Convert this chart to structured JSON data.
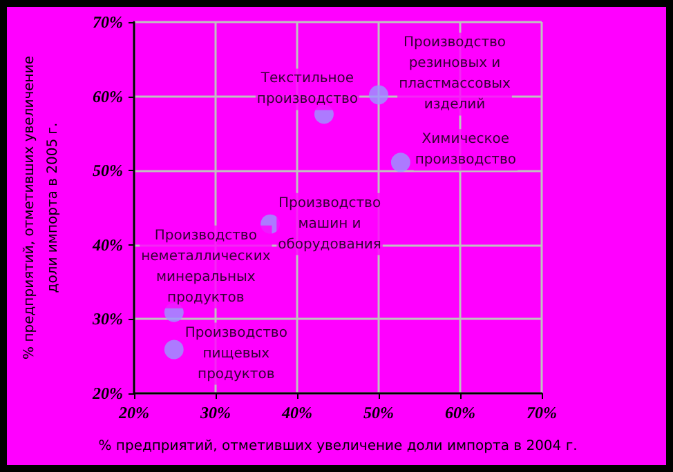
{
  "chart_data": {
    "type": "scatter",
    "xlabel": "% предприятий, отметивших увеличение доли импорта в 2004 г.",
    "ylabel": "% предприятий, отметивших увеличение\nдоли импорта в 2005 г.",
    "x": [
      43.3,
      50.0,
      52.7,
      36.7,
      24.9,
      24.9
    ],
    "series": [
      {
        "color": "#9999ff",
        "values": [
          57.6,
          60.2,
          51.1,
          42.8,
          30.9,
          25.9
        ]
      }
    ],
    "annotations": [
      {
        "text": "Текстильное\nпроизводство",
        "x": 43.3,
        "y": 57.6
      },
      {
        "text": "Производство\nрезиновых и\nпластмассовых\nизделий",
        "x": 50.0,
        "y": 60.2
      },
      {
        "text": "Химическое\nпроизводство",
        "x": 52.7,
        "y": 51.1
      },
      {
        "text": "Производство\nмашин и\nоборудования",
        "x": 36.7,
        "y": 42.8
      },
      {
        "text": "Производство\nнеметаллических\nминеральных\nпродуктов",
        "x": 24.9,
        "y": 30.9
      },
      {
        "text": "Производство\nпищевых\nпродуктов",
        "x": 24.9,
        "y": 25.9
      }
    ],
    "xlim": [
      20,
      70
    ],
    "xticks": [
      {
        "value": 20,
        "label": "20%"
      },
      {
        "value": 30,
        "label": "30%"
      },
      {
        "value": 40,
        "label": "40%"
      },
      {
        "value": 50,
        "label": "50%"
      },
      {
        "value": 60,
        "label": "60%"
      },
      {
        "value": 70,
        "label": "70%"
      }
    ],
    "ylim": [
      20,
      70
    ],
    "yticks": [
      {
        "value": 20,
        "label": "20%"
      },
      {
        "value": 30,
        "label": "30%"
      },
      {
        "value": 40,
        "label": "40%"
      },
      {
        "value": 50,
        "label": "50%"
      },
      {
        "value": 60,
        "label": "60%"
      },
      {
        "value": 70,
        "label": "70%"
      }
    ],
    "grid": true,
    "marker": "circle"
  }
}
